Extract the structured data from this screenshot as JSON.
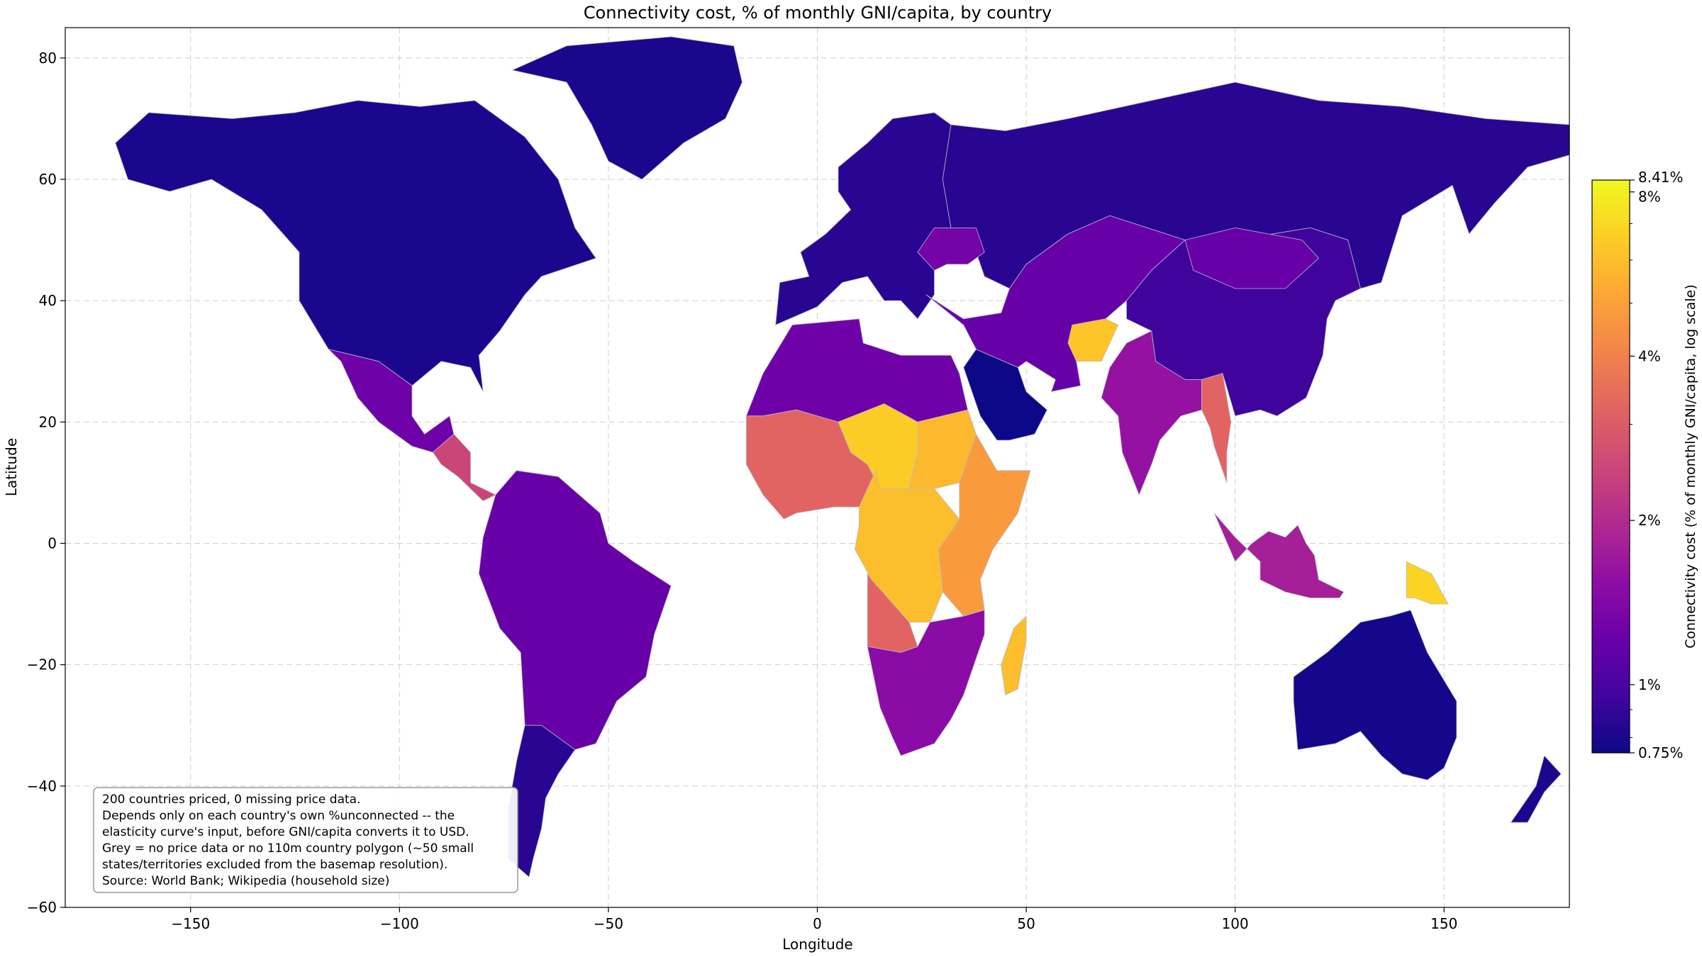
{
  "title": "Connectivity cost, % of monthly GNI/capita, by country",
  "xlabel": "Longitude",
  "ylabel": "Latitude",
  "x_ticks": [
    "−150",
    "−100",
    "−50",
    "0",
    "50",
    "100",
    "150"
  ],
  "y_ticks": [
    "−60",
    "−40",
    "−20",
    "0",
    "20",
    "40",
    "60",
    "80"
  ],
  "colorbar": {
    "label": "Connectivity cost (% of monthly GNI/capita, log scale)",
    "scale": "log",
    "min": 0.75,
    "max": 8.41,
    "colormap": "plasma",
    "tick_labels": [
      "0.75%",
      "1%",
      "2%",
      "4%",
      "8%",
      "8.41%"
    ],
    "tick_values": [
      0.75,
      1,
      2,
      4,
      8,
      8.41
    ]
  },
  "note_lines": [
    "200 countries priced, 0 missing price data.",
    "Depends only on each country's own %unconnected -- the",
    "elasticity curve's input, before GNI/capita converts it to USD.",
    "Grey = no price data or no 110m country polygon (~50 small",
    "states/territories excluded from the basemap resolution).",
    "Source: World Bank; Wikipedia (household size)"
  ],
  "chart_data": {
    "type": "choropleth",
    "title": "Connectivity cost, % of monthly GNI/capita, by country",
    "xlabel": "Longitude",
    "ylabel": "Latitude",
    "xlim": [
      -180,
      180
    ],
    "ylim": [
      -60,
      85
    ],
    "grid": true,
    "no_data_color": "#dddddd",
    "regions": [
      {
        "name": "North America",
        "value": 0.8
      },
      {
        "name": "Greenland",
        "value": 0.8
      },
      {
        "name": "Mexico",
        "value": 1.25
      },
      {
        "name": "Central America",
        "value": 2.5
      },
      {
        "name": "South America",
        "value": 1.2
      },
      {
        "name": "Southern Cone",
        "value": 0.85
      },
      {
        "name": "Europe",
        "value": 0.85
      },
      {
        "name": "Russia",
        "value": 0.85
      },
      {
        "name": "Ukraine",
        "value": 1.3
      },
      {
        "name": "North Africa",
        "value": 1.25
      },
      {
        "name": "West Africa",
        "value": 3.2
      },
      {
        "name": "Sahel",
        "value": 6.5
      },
      {
        "name": "Sudan",
        "value": 5.8
      },
      {
        "name": "East Africa",
        "value": 4.8
      },
      {
        "name": "Central Africa",
        "value": 6.0
      },
      {
        "name": "Angola",
        "value": 3.2
      },
      {
        "name": "Southern Africa",
        "value": 1.5
      },
      {
        "name": "Madagascar",
        "value": 6.0
      },
      {
        "name": "Saudi Arabia",
        "value": 0.75
      },
      {
        "name": "Middle East",
        "value": 1.2
      },
      {
        "name": "Afghanistan",
        "value": 6.2
      },
      {
        "name": "India",
        "value": 1.6
      },
      {
        "name": "Myanmar",
        "value": 3.2
      },
      {
        "name": "China",
        "value": 0.95
      },
      {
        "name": "Mongolia",
        "value": 1.2
      },
      {
        "name": "Indonesia",
        "value": 1.8
      },
      {
        "name": "Papua New Guinea",
        "value": 6.8
      },
      {
        "name": "Australia",
        "value": 0.78
      },
      {
        "name": "New Zealand",
        "value": 0.8
      }
    ]
  }
}
